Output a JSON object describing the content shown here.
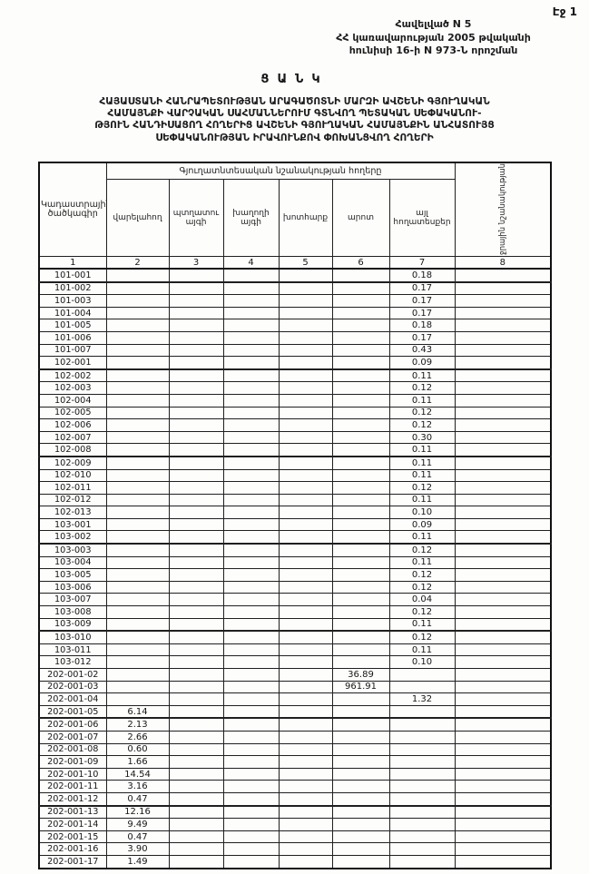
{
  "page": {
    "label": "Էջ 1"
  },
  "header": {
    "line1": "Հավելված N 5",
    "line2": "ՀՀ կառավարության 2005 թվականի",
    "line3": "հունիսի 16-ի N 973-Ն որոշման"
  },
  "title": "ՑԱՆԿ",
  "subtitle": {
    "line1": "ՀԱՅԱՍՏԱՆԻ ՀԱՆՐԱՊԵՏՈՒԹՅԱՆ ԱՐԱԳԱԾՈՏՆԻ ՄԱՐԶԻ ԱՎՇԵՆԻ ԳՅՈՒՂԱԿԱՆ",
    "line2": "ՀԱՄԱՅՆՔԻ ՎԱՐՉԱԿԱՆ ՍԱՀՄԱՆՆԵՐՈՒՄ ԳՏՆՎՈՂ ՊԵՏԱԿԱՆ  ՍԵՓԱԿԱՆՈՒ-",
    "line3": "ԹՅՈՒՆ ՀԱՆԴԻՍԱՑՈՂ ՀՈՂԵՐԻՑ ԱՎՇԵՆԻ ԳՅՈՒՂԱԿԱՆ ՀԱՄԱՅՆՔԻՆ ԱՆՀԱՏՈՒՅՑ",
    "line4": "ՍԵՓԱԿԱՆՈՒԹՅԱՆ ԻՐԱՎՈՒՆՔՈՎ ՓՈԽԱՆՑՎՈՂ ՀՈՂԵՐԻ"
  },
  "table": {
    "col1_header": "Կադաստրային ծածկագիր",
    "group_header": "Գյուղատնտեսական նշանակության հողերը",
    "col8_header": "ջրային նշանակության",
    "columns": [
      "վարելահող",
      "պտղատու այգի",
      "խաղողի այգի",
      "խոտհարք",
      "արոտ",
      "այլ հողատեսքեր"
    ],
    "number_row": [
      "1",
      "2",
      "3",
      "4",
      "5",
      "6",
      "7",
      "8"
    ],
    "rows": [
      {
        "code": "101-001",
        "col": 7,
        "value": "0.18"
      },
      {
        "code": "101-002",
        "col": 7,
        "value": "0.17"
      },
      {
        "code": "101-003",
        "col": 7,
        "value": "0.17"
      },
      {
        "code": "101-004",
        "col": 7,
        "value": "0.17"
      },
      {
        "code": "101-005",
        "col": 7,
        "value": "0.18"
      },
      {
        "code": "101-006",
        "col": 7,
        "value": "0.17"
      },
      {
        "code": "101-007",
        "col": 7,
        "value": "0.43"
      },
      {
        "code": "102-001",
        "col": 7,
        "value": "0.09"
      },
      {
        "code": "102-002",
        "col": 7,
        "value": "0.11"
      },
      {
        "code": "102-003",
        "col": 7,
        "value": "0.12"
      },
      {
        "code": "102-004",
        "col": 7,
        "value": "0.11"
      },
      {
        "code": "102-005",
        "col": 7,
        "value": "0.12"
      },
      {
        "code": "102-006",
        "col": 7,
        "value": "0.12"
      },
      {
        "code": "102-007",
        "col": 7,
        "value": "0.30"
      },
      {
        "code": "102-008",
        "col": 7,
        "value": "0.11"
      },
      {
        "code": "102-009",
        "col": 7,
        "value": "0.11"
      },
      {
        "code": "102-010",
        "col": 7,
        "value": "0.11"
      },
      {
        "code": "102-011",
        "col": 7,
        "value": "0.12"
      },
      {
        "code": "102-012",
        "col": 7,
        "value": "0.11"
      },
      {
        "code": "102-013",
        "col": 7,
        "value": "0.10"
      },
      {
        "code": "103-001",
        "col": 7,
        "value": "0.09"
      },
      {
        "code": "103-002",
        "col": 7,
        "value": "0.11"
      },
      {
        "code": "103-003",
        "col": 7,
        "value": "0.12"
      },
      {
        "code": "103-004",
        "col": 7,
        "value": "0.11"
      },
      {
        "code": "103-005",
        "col": 7,
        "value": "0.12"
      },
      {
        "code": "103-006",
        "col": 7,
        "value": "0.12"
      },
      {
        "code": "103-007",
        "col": 7,
        "value": "0.04"
      },
      {
        "code": "103-008",
        "col": 7,
        "value": "0.12"
      },
      {
        "code": "103-009",
        "col": 7,
        "value": "0.11"
      },
      {
        "code": "103-010",
        "col": 7,
        "value": "0.12"
      },
      {
        "code": "103-011",
        "col": 7,
        "value": "0.11"
      },
      {
        "code": "103-012",
        "col": 7,
        "value": "0.10"
      },
      {
        "code": "202-001-02",
        "col": 6,
        "value": "36.89"
      },
      {
        "code": "202-001-03",
        "col": 6,
        "value": "961.91"
      },
      {
        "code": "202-001-04",
        "col": 7,
        "value": "1.32"
      },
      {
        "code": "202-001-05",
        "col": 2,
        "value": "6.14"
      },
      {
        "code": "202-001-06",
        "col": 2,
        "value": "2.13"
      },
      {
        "code": "202-001-07",
        "col": 2,
        "value": "2.66"
      },
      {
        "code": "202-001-08",
        "col": 2,
        "value": "0.60"
      },
      {
        "code": "202-001-09",
        "col": 2,
        "value": "1.66"
      },
      {
        "code": "202-001-10",
        "col": 2,
        "value": "14.54"
      },
      {
        "code": "202-001-11",
        "col": 2,
        "value": "3.16"
      },
      {
        "code": "202-001-12",
        "col": 2,
        "value": "0.47"
      },
      {
        "code": "202-001-13",
        "col": 2,
        "value": "12.16"
      },
      {
        "code": "202-001-14",
        "col": 2,
        "value": "9.49"
      },
      {
        "code": "202-001-15",
        "col": 2,
        "value": "0.47"
      },
      {
        "code": "202-001-16",
        "col": 2,
        "value": "3.90"
      },
      {
        "code": "202-001-17",
        "col": 2,
        "value": "1.49"
      }
    ]
  }
}
